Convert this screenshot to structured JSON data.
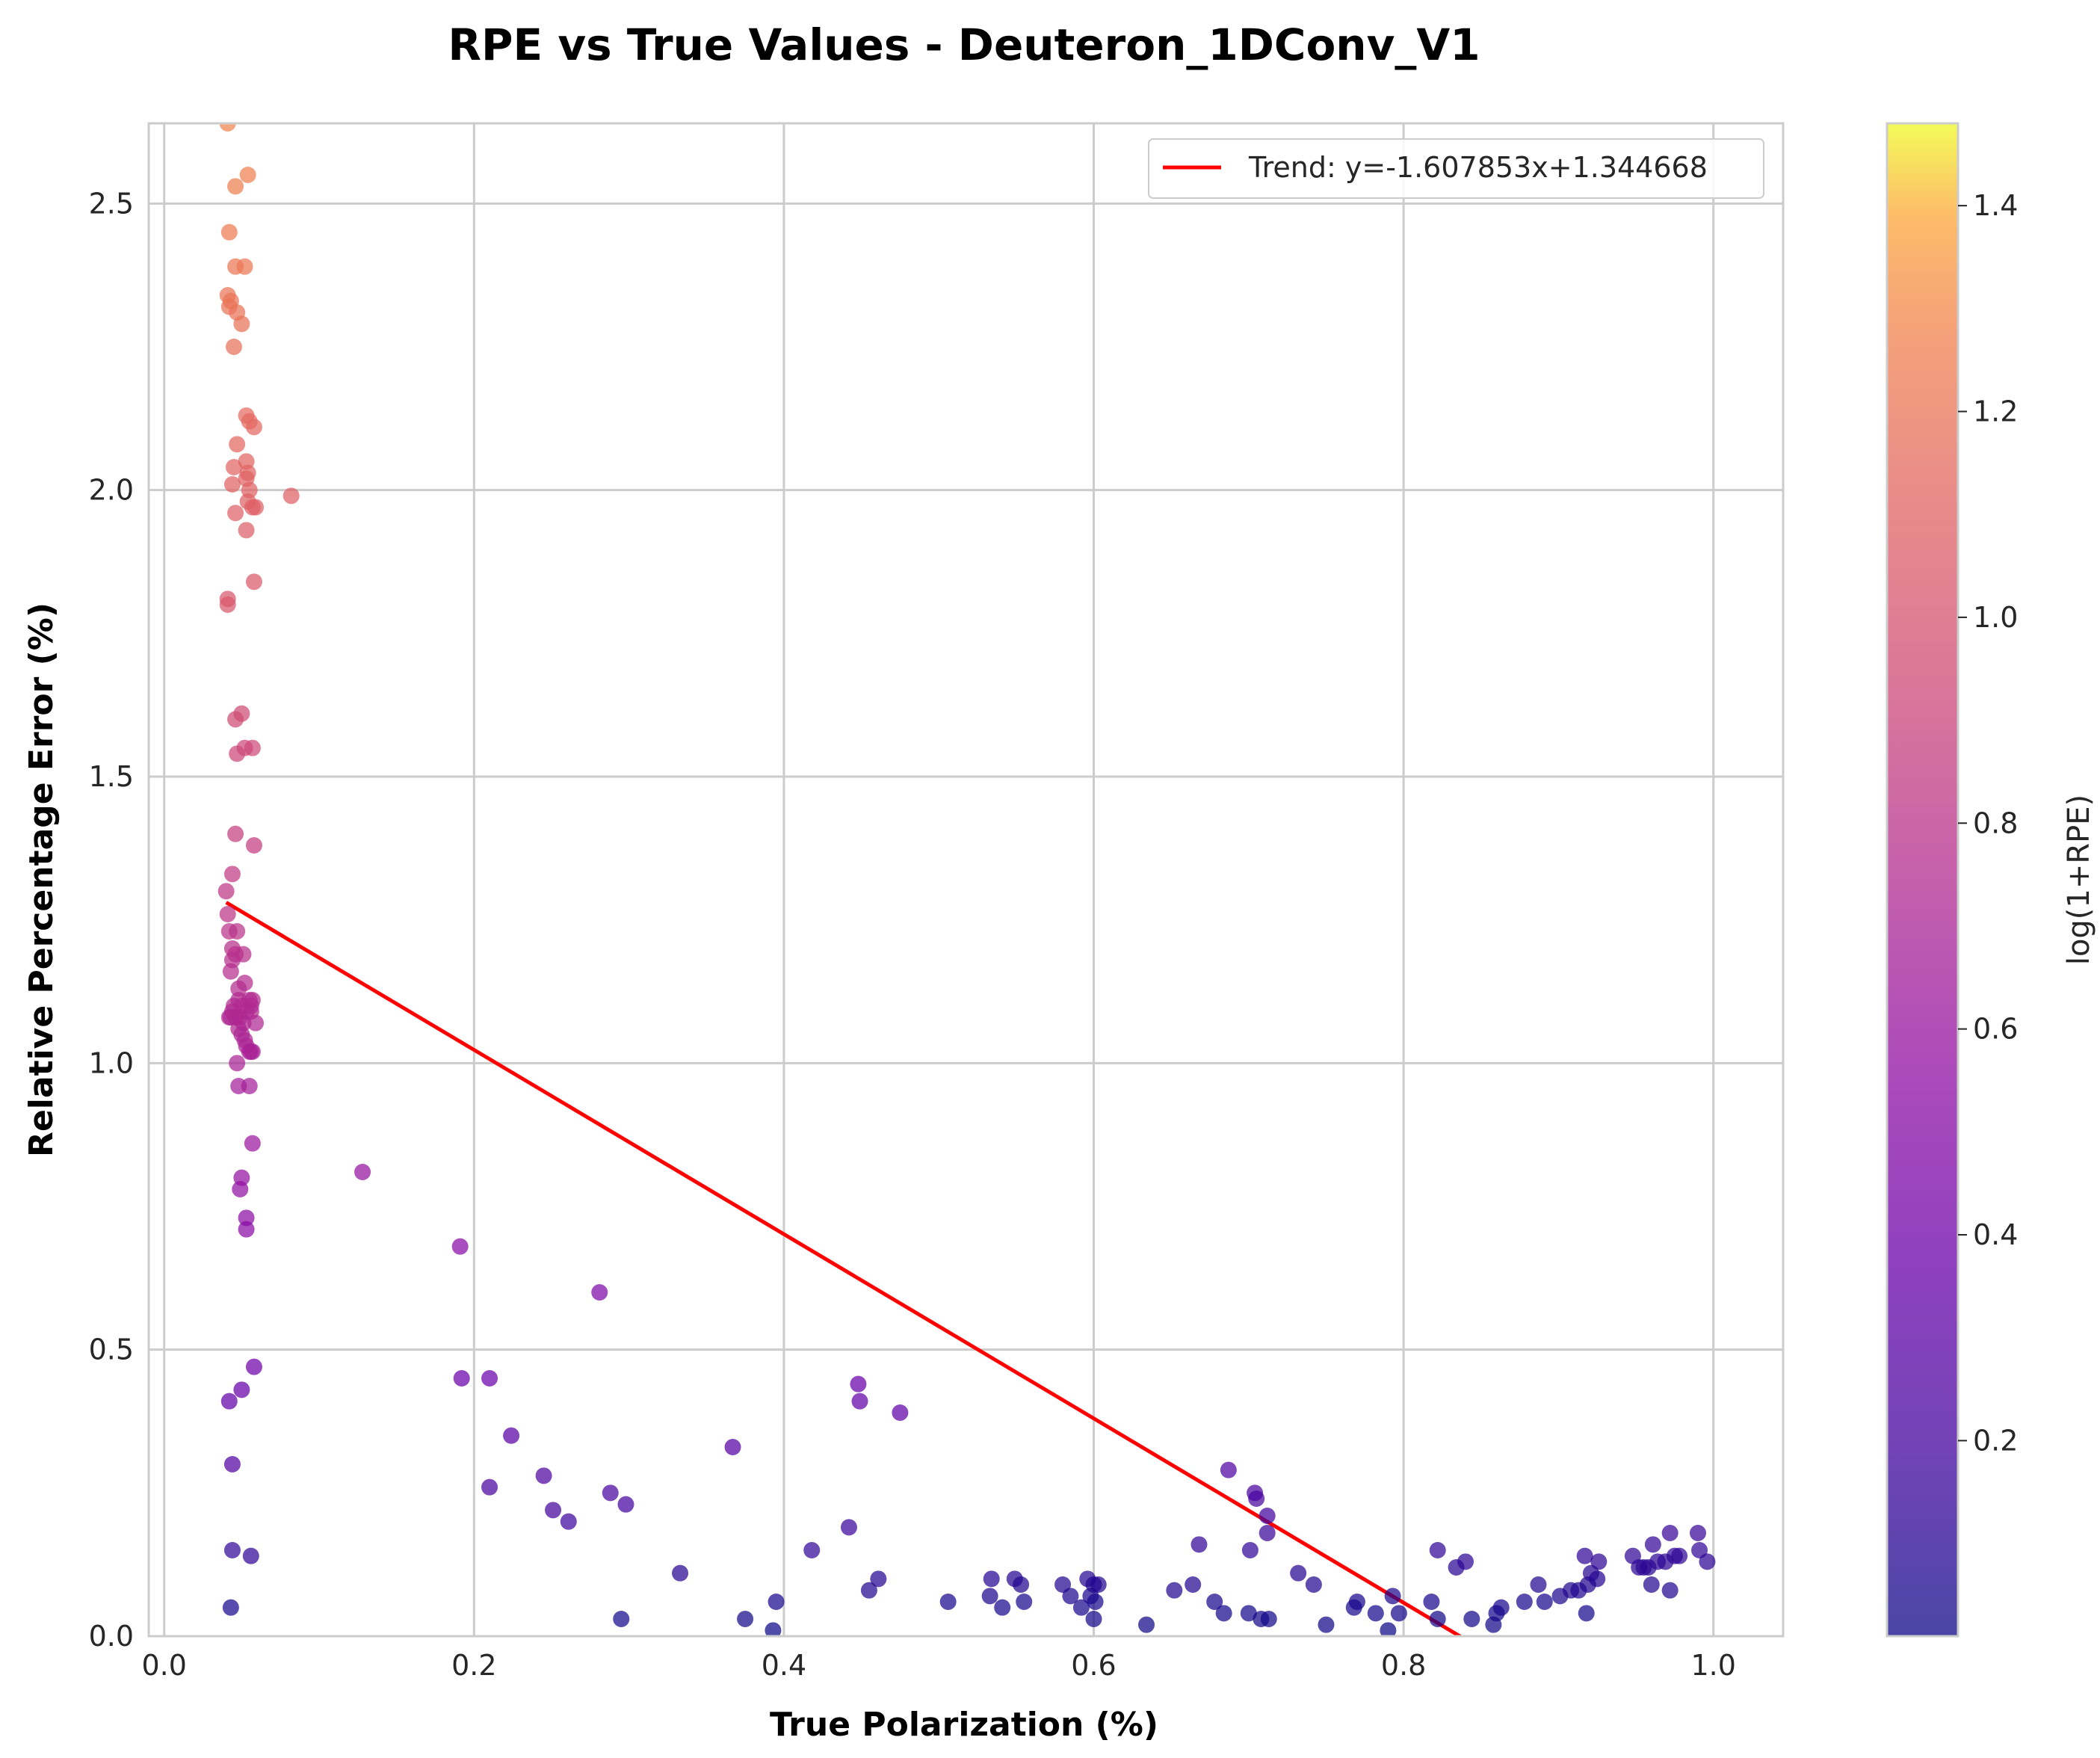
{
  "chart_data": {
    "type": "scatter",
    "title": "RPE vs True Values - Deuteron_1DConv_V1",
    "xlabel": "True Polarization (%)",
    "ylabel": "Relative Percentage Error (%)",
    "xlim": [
      -0.01,
      1.045
    ],
    "ylim": [
      0,
      2.64
    ],
    "xticks": [
      "0.0",
      "0.2",
      "0.4",
      "0.6",
      "0.8",
      "1.0"
    ],
    "yticks": [
      "0.0",
      "0.5",
      "1.0",
      "1.5",
      "2.0",
      "2.5"
    ],
    "grid": true,
    "legend": {
      "position": "top-right",
      "entries": [
        "Trend: y=-1.607853x+1.344668"
      ]
    },
    "trend": {
      "label": "Trend: y=-1.607853x+1.344668",
      "slope": -1.607853,
      "intercept": 1.344668,
      "x_range": [
        0.04,
        0.995
      ],
      "color": "#ff0000"
    },
    "colorbar": {
      "label": "log(1+RPE)",
      "range": [
        0.01,
        1.48
      ],
      "ticks": [
        "0.2",
        "0.4",
        "0.6",
        "0.8",
        "1.0",
        "1.2",
        "1.4"
      ],
      "colormap": "plasma"
    },
    "points": [
      [
        0.041,
        2.64
      ],
      [
        0.054,
        2.55
      ],
      [
        0.046,
        2.53
      ],
      [
        0.042,
        2.45
      ],
      [
        0.046,
        2.39
      ],
      [
        0.052,
        2.39
      ],
      [
        0.041,
        2.34
      ],
      [
        0.043,
        2.33
      ],
      [
        0.042,
        2.32
      ],
      [
        0.047,
        2.31
      ],
      [
        0.05,
        2.29
      ],
      [
        0.045,
        2.25
      ],
      [
        0.053,
        2.13
      ],
      [
        0.055,
        2.12
      ],
      [
        0.058,
        2.11
      ],
      [
        0.047,
        2.08
      ],
      [
        0.053,
        2.05
      ],
      [
        0.045,
        2.04
      ],
      [
        0.054,
        2.03
      ],
      [
        0.053,
        2.02
      ],
      [
        0.044,
        2.01
      ],
      [
        0.055,
        2.0
      ],
      [
        0.054,
        1.98
      ],
      [
        0.057,
        1.97
      ],
      [
        0.059,
        1.97
      ],
      [
        0.046,
        1.96
      ],
      [
        0.053,
        1.93
      ],
      [
        0.082,
        1.99
      ],
      [
        0.058,
        1.84
      ],
      [
        0.041,
        1.81
      ],
      [
        0.041,
        1.8
      ],
      [
        0.05,
        1.61
      ],
      [
        0.046,
        1.6
      ],
      [
        0.052,
        1.55
      ],
      [
        0.057,
        1.55
      ],
      [
        0.047,
        1.54
      ],
      [
        0.046,
        1.4
      ],
      [
        0.058,
        1.38
      ],
      [
        0.044,
        1.33
      ],
      [
        0.04,
        1.3
      ],
      [
        0.041,
        1.26
      ],
      [
        0.047,
        1.23
      ],
      [
        0.042,
        1.23
      ],
      [
        0.044,
        1.2
      ],
      [
        0.046,
        1.19
      ],
      [
        0.051,
        1.19
      ],
      [
        0.044,
        1.18
      ],
      [
        0.043,
        1.16
      ],
      [
        0.048,
        1.13
      ],
      [
        0.052,
        1.14
      ],
      [
        0.055,
        1.11
      ],
      [
        0.057,
        1.11
      ],
      [
        0.056,
        1.1
      ],
      [
        0.048,
        1.11
      ],
      [
        0.045,
        1.1
      ],
      [
        0.044,
        1.09
      ],
      [
        0.05,
        1.1
      ],
      [
        0.053,
        1.09
      ],
      [
        0.056,
        1.09
      ],
      [
        0.042,
        1.08
      ],
      [
        0.043,
        1.08
      ],
      [
        0.046,
        1.08
      ],
      [
        0.049,
        1.08
      ],
      [
        0.051,
        1.07
      ],
      [
        0.059,
        1.07
      ],
      [
        0.048,
        1.06
      ],
      [
        0.05,
        1.05
      ],
      [
        0.052,
        1.04
      ],
      [
        0.053,
        1.03
      ],
      [
        0.055,
        1.02
      ],
      [
        0.056,
        1.02
      ],
      [
        0.057,
        1.02
      ],
      [
        0.047,
        1.0
      ],
      [
        0.055,
        0.96
      ],
      [
        0.048,
        0.96
      ],
      [
        0.057,
        0.86
      ],
      [
        0.05,
        0.8
      ],
      [
        0.049,
        0.78
      ],
      [
        0.053,
        0.73
      ],
      [
        0.053,
        0.71
      ],
      [
        0.128,
        0.81
      ],
      [
        0.191,
        0.68
      ],
      [
        0.281,
        0.6
      ],
      [
        0.058,
        0.47
      ],
      [
        0.05,
        0.43
      ],
      [
        0.042,
        0.41
      ],
      [
        0.044,
        0.3
      ],
      [
        0.044,
        0.15
      ],
      [
        0.056,
        0.14
      ],
      [
        0.043,
        0.05
      ],
      [
        0.192,
        0.45
      ],
      [
        0.21,
        0.45
      ],
      [
        0.224,
        0.35
      ],
      [
        0.21,
        0.26
      ],
      [
        0.245,
        0.28
      ],
      [
        0.251,
        0.22
      ],
      [
        0.261,
        0.2
      ],
      [
        0.288,
        0.25
      ],
      [
        0.298,
        0.23
      ],
      [
        0.295,
        0.03
      ],
      [
        0.333,
        0.11
      ],
      [
        0.367,
        0.33
      ],
      [
        0.375,
        0.03
      ],
      [
        0.393,
        0.01
      ],
      [
        0.395,
        0.06
      ],
      [
        0.418,
        0.15
      ],
      [
        0.442,
        0.19
      ],
      [
        0.448,
        0.44
      ],
      [
        0.449,
        0.41
      ],
      [
        0.455,
        0.08
      ],
      [
        0.461,
        0.1
      ],
      [
        0.475,
        0.39
      ],
      [
        0.506,
        0.06
      ],
      [
        0.534,
        0.1
      ],
      [
        0.533,
        0.07
      ],
      [
        0.541,
        0.05
      ],
      [
        0.549,
        0.1
      ],
      [
        0.553,
        0.09
      ],
      [
        0.555,
        0.06
      ],
      [
        0.58,
        0.09
      ],
      [
        0.585,
        0.07
      ],
      [
        0.592,
        0.05
      ],
      [
        0.596,
        0.1
      ],
      [
        0.6,
        0.09
      ],
      [
        0.598,
        0.07
      ],
      [
        0.601,
        0.06
      ],
      [
        0.603,
        0.09
      ],
      [
        0.6,
        0.03
      ],
      [
        0.634,
        0.02
      ],
      [
        0.652,
        0.08
      ],
      [
        0.664,
        0.09
      ],
      [
        0.668,
        0.16
      ],
      [
        0.678,
        0.06
      ],
      [
        0.684,
        0.04
      ],
      [
        0.687,
        0.29
      ],
      [
        0.701,
        0.15
      ],
      [
        0.705,
        0.24
      ],
      [
        0.704,
        0.25
      ],
      [
        0.712,
        0.18
      ],
      [
        0.712,
        0.21
      ],
      [
        0.7,
        0.04
      ],
      [
        0.708,
        0.03
      ],
      [
        0.713,
        0.03
      ],
      [
        0.732,
        0.11
      ],
      [
        0.742,
        0.09
      ],
      [
        0.75,
        0.02
      ],
      [
        0.768,
        0.05
      ],
      [
        0.77,
        0.06
      ],
      [
        0.782,
        0.04
      ],
      [
        0.79,
        0.01
      ],
      [
        0.793,
        0.07
      ],
      [
        0.797,
        0.04
      ],
      [
        0.818,
        0.06
      ],
      [
        0.822,
        0.15
      ],
      [
        0.822,
        0.03
      ],
      [
        0.834,
        0.12
      ],
      [
        0.84,
        0.13
      ],
      [
        0.844,
        0.03
      ],
      [
        0.858,
        0.02
      ],
      [
        0.86,
        0.04
      ],
      [
        0.863,
        0.05
      ],
      [
        0.878,
        0.06
      ],
      [
        0.887,
        0.09
      ],
      [
        0.891,
        0.06
      ],
      [
        0.901,
        0.07
      ],
      [
        0.908,
        0.08
      ],
      [
        0.913,
        0.08
      ],
      [
        0.917,
        0.14
      ],
      [
        0.919,
        0.09
      ],
      [
        0.921,
        0.11
      ],
      [
        0.925,
        0.1
      ],
      [
        0.926,
        0.13
      ],
      [
        0.918,
        0.04
      ],
      [
        0.948,
        0.14
      ],
      [
        0.952,
        0.12
      ],
      [
        0.955,
        0.12
      ],
      [
        0.958,
        0.12
      ],
      [
        0.961,
        0.16
      ],
      [
        0.96,
        0.09
      ],
      [
        0.964,
        0.13
      ],
      [
        0.969,
        0.13
      ],
      [
        0.972,
        0.18
      ],
      [
        0.972,
        0.08
      ],
      [
        0.975,
        0.14
      ],
      [
        0.978,
        0.14
      ],
      [
        0.99,
        0.18
      ],
      [
        0.991,
        0.15
      ],
      [
        0.996,
        0.13
      ]
    ]
  }
}
